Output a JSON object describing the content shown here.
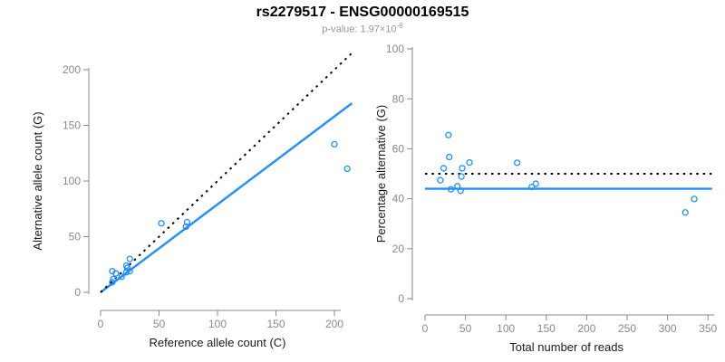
{
  "header": {
    "title": "rs2279517 - ENSG00000169515",
    "pvalue_label": "p-value:",
    "pvalue_base": "1.97×10",
    "pvalue_exponent": "-6"
  },
  "colors": {
    "accent": "#1E90FF",
    "axis": "#8A8A8A",
    "tick_label": "#8A8A8A",
    "axis_label": "#1A1A1A",
    "dashed_line": "#000000",
    "title": "#000000",
    "subtitle": "#979797"
  },
  "chart_data": [
    {
      "type": "scatter",
      "name": "allele-counts",
      "xlabel": "Reference allele count (C)",
      "ylabel": "Alternative allele count (G)",
      "xlim": [
        0,
        215
      ],
      "ylim": [
        0,
        215
      ],
      "xticks": [
        0,
        50,
        100,
        150,
        200
      ],
      "yticks": [
        0,
        50,
        100,
        150,
        200
      ],
      "grid": false,
      "legend": null,
      "marker": "open-circle",
      "points": [
        [
          10,
          9
        ],
        [
          11,
          12
        ],
        [
          10,
          19
        ],
        [
          13,
          17
        ],
        [
          18,
          14
        ],
        [
          22,
          18
        ],
        [
          25,
          19
        ],
        [
          23,
          22
        ],
        [
          22,
          24
        ],
        [
          25,
          30
        ],
        [
          52,
          62
        ],
        [
          73,
          59
        ],
        [
          74,
          63
        ],
        [
          200,
          133
        ],
        [
          211,
          111
        ]
      ],
      "lines": [
        {
          "name": "fitted-allelic-ratio-line",
          "style": "solid",
          "color": "accent",
          "slope": 0.79,
          "intercept": 0
        },
        {
          "name": "identity-line",
          "style": "dashed",
          "color": "black",
          "slope": 1,
          "intercept": 0
        }
      ]
    },
    {
      "type": "scatter",
      "name": "percentage-vs-reads",
      "xlabel": "Total number of reads",
      "ylabel": "Percentage alternative (G)",
      "xlim": [
        0,
        355
      ],
      "ylim": [
        0,
        100
      ],
      "xticks": [
        0,
        50,
        100,
        150,
        200,
        250,
        300,
        350
      ],
      "yticks": [
        0,
        20,
        40,
        60,
        80,
        100
      ],
      "grid": false,
      "legend": null,
      "marker": "open-circle",
      "points": [
        [
          19,
          47.4
        ],
        [
          23,
          52.2
        ],
        [
          29,
          65.5
        ],
        [
          30,
          56.7
        ],
        [
          32,
          43.8
        ],
        [
          40,
          45
        ],
        [
          44,
          43.2
        ],
        [
          45,
          48.9
        ],
        [
          46,
          52.2
        ],
        [
          55,
          54.5
        ],
        [
          114,
          54.4
        ],
        [
          132,
          44.7
        ],
        [
          137,
          46
        ],
        [
          322,
          34.5
        ],
        [
          333,
          39.9
        ]
      ],
      "lines": [
        {
          "name": "mean-percentage-line",
          "style": "solid",
          "color": "accent",
          "slope": 0,
          "intercept": 44
        },
        {
          "name": "expected-50-percent-line",
          "style": "dashed",
          "color": "black",
          "slope": 0,
          "intercept": 50
        }
      ]
    }
  ]
}
